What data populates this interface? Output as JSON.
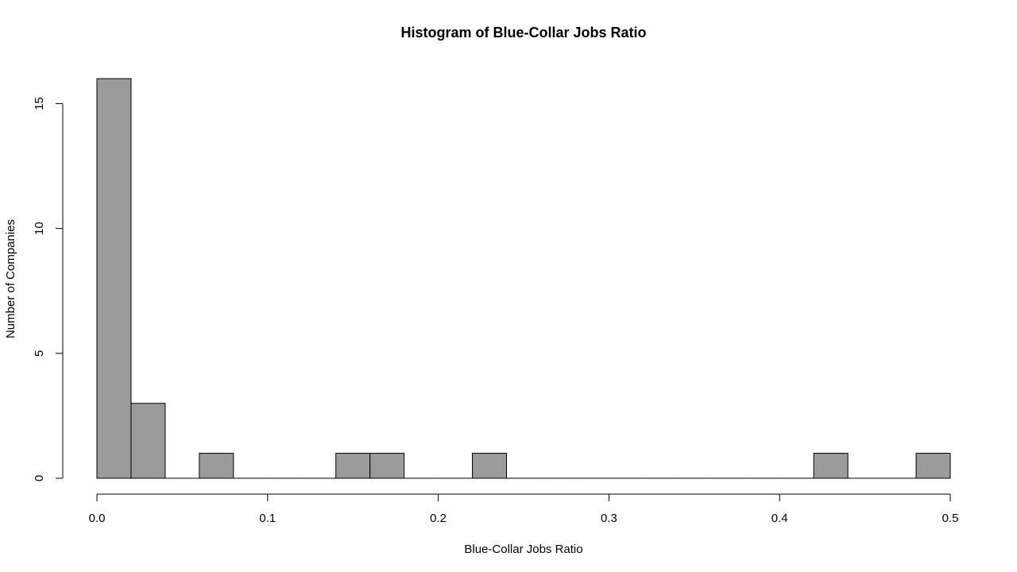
{
  "chart_data": {
    "type": "bar",
    "title": "Histogram of Blue-Collar Jobs Ratio",
    "xlabel": "Blue-Collar Jobs Ratio",
    "ylabel": "Number of Companies",
    "bin_width": 0.02,
    "bins": [
      [
        0.0,
        0.02
      ],
      [
        0.02,
        0.04
      ],
      [
        0.04,
        0.06
      ],
      [
        0.06,
        0.08
      ],
      [
        0.08,
        0.1
      ],
      [
        0.1,
        0.12
      ],
      [
        0.12,
        0.14
      ],
      [
        0.14,
        0.16
      ],
      [
        0.16,
        0.18
      ],
      [
        0.18,
        0.2
      ],
      [
        0.2,
        0.22
      ],
      [
        0.22,
        0.24
      ],
      [
        0.24,
        0.26
      ],
      [
        0.26,
        0.28
      ],
      [
        0.28,
        0.3
      ],
      [
        0.3,
        0.32
      ],
      [
        0.32,
        0.34
      ],
      [
        0.34,
        0.36
      ],
      [
        0.36,
        0.38
      ],
      [
        0.38,
        0.4
      ],
      [
        0.4,
        0.42
      ],
      [
        0.42,
        0.44
      ],
      [
        0.44,
        0.46
      ],
      [
        0.46,
        0.48
      ],
      [
        0.48,
        0.5
      ]
    ],
    "values": [
      16,
      3,
      0,
      1,
      0,
      0,
      0,
      1,
      1,
      0,
      0,
      1,
      0,
      0,
      0,
      0,
      0,
      0,
      0,
      0,
      0,
      1,
      0,
      0,
      1
    ],
    "xlim": [
      0.0,
      0.5
    ],
    "ylim": [
      0,
      16
    ],
    "x_ticks": [
      0.0,
      0.1,
      0.2,
      0.3,
      0.4,
      0.5
    ],
    "x_tick_labels": [
      "0.0",
      "0.1",
      "0.2",
      "0.3",
      "0.4",
      "0.5"
    ],
    "y_ticks": [
      0,
      5,
      10,
      15
    ],
    "y_tick_labels": [
      "0",
      "5",
      "10",
      "15"
    ],
    "grid": false,
    "bar_color": "#9b9b9b",
    "edge_color": "#000000"
  }
}
